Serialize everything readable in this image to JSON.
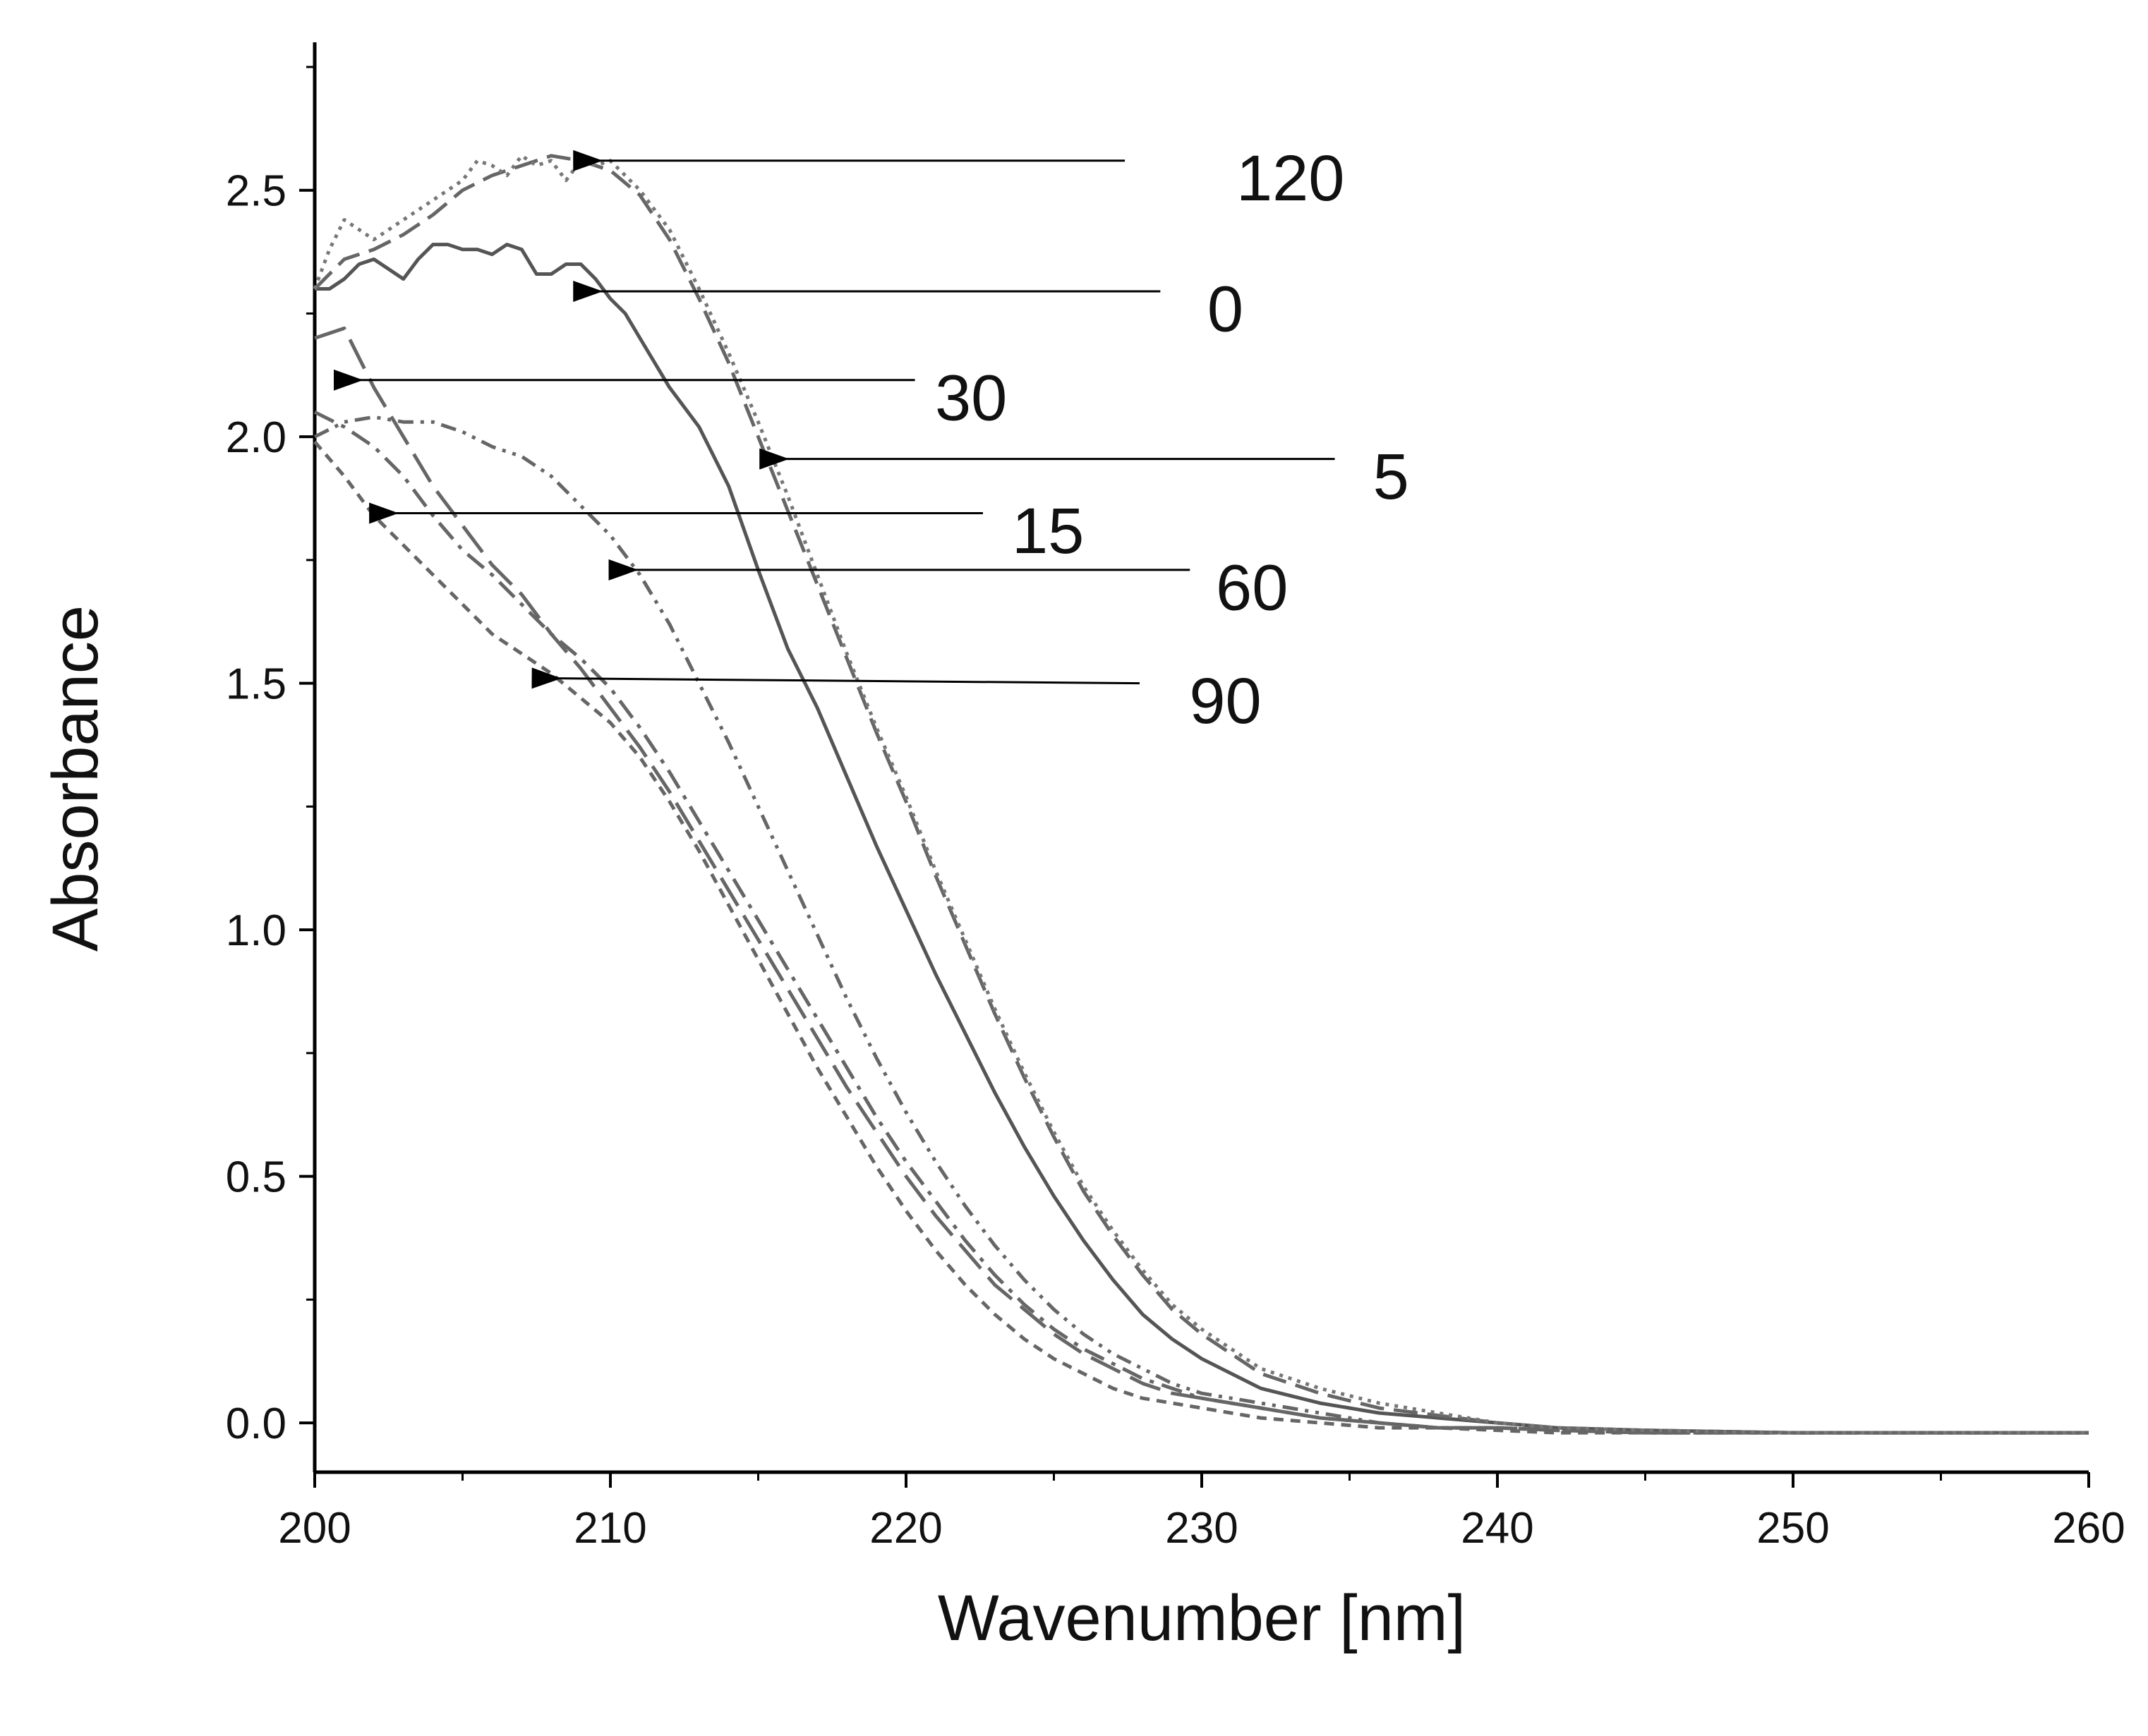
{
  "chart_data": {
    "type": "line",
    "title": "",
    "xlabel": "Wavenumber [nm]",
    "ylabel": "Absorbance",
    "xlim": [
      200,
      260
    ],
    "ylim": [
      -0.1,
      2.8
    ],
    "xticks": [
      200,
      210,
      220,
      230,
      240,
      250,
      260
    ],
    "xtick_labels": [
      "200",
      "210",
      "220",
      "230",
      "240",
      "250",
      "260"
    ],
    "yticks": [
      0.0,
      0.5,
      1.0,
      1.5,
      2.0,
      2.5
    ],
    "ytick_labels": [
      "0.0",
      "0.5",
      "1.0",
      "1.5",
      "2.0",
      "2.5"
    ],
    "grid": false,
    "series": [
      {
        "name": "0",
        "style": "solid",
        "color": "#555555",
        "x": [
          200,
          200.5,
          201,
          201.5,
          202,
          202.5,
          203,
          203.5,
          204,
          204.5,
          205,
          205.5,
          206,
          206.5,
          207,
          207.5,
          208,
          208.5,
          209,
          209.5,
          210,
          210.5,
          211,
          212,
          213,
          214,
          215,
          216,
          217,
          218,
          219,
          220,
          221,
          222,
          223,
          224,
          225,
          226,
          227,
          228,
          229,
          230,
          232,
          234,
          236,
          238,
          240,
          242,
          245,
          250,
          255,
          260
        ],
        "y": [
          2.3,
          2.3,
          2.32,
          2.35,
          2.36,
          2.34,
          2.32,
          2.36,
          2.39,
          2.39,
          2.38,
          2.38,
          2.37,
          2.39,
          2.38,
          2.33,
          2.33,
          2.35,
          2.35,
          2.32,
          2.28,
          2.25,
          2.2,
          2.1,
          2.02,
          1.9,
          1.73,
          1.57,
          1.45,
          1.31,
          1.17,
          1.04,
          0.91,
          0.79,
          0.67,
          0.56,
          0.46,
          0.37,
          0.29,
          0.22,
          0.17,
          0.13,
          0.07,
          0.04,
          0.02,
          0.01,
          0.0,
          -0.01,
          -0.015,
          -0.02,
          -0.02,
          -0.02
        ]
      },
      {
        "name": "5",
        "style": "dashdash",
        "color": "#666666",
        "x": [
          200,
          200.5,
          201,
          202,
          203,
          204,
          205,
          206,
          207,
          208,
          209,
          210,
          211,
          212,
          213,
          214,
          215,
          216,
          217,
          218,
          219,
          220,
          221,
          222,
          223,
          224,
          225,
          226,
          227,
          228,
          229,
          230,
          232,
          234,
          236,
          238,
          240,
          242,
          245,
          250,
          255,
          260
        ],
        "y": [
          2.3,
          2.33,
          2.36,
          2.38,
          2.41,
          2.45,
          2.5,
          2.53,
          2.55,
          2.57,
          2.56,
          2.54,
          2.49,
          2.4,
          2.28,
          2.15,
          2.0,
          1.85,
          1.7,
          1.55,
          1.4,
          1.26,
          1.11,
          0.97,
          0.83,
          0.7,
          0.58,
          0.47,
          0.38,
          0.3,
          0.23,
          0.18,
          0.1,
          0.06,
          0.03,
          0.015,
          0.0,
          -0.01,
          -0.015,
          -0.02,
          -0.02,
          -0.02
        ]
      },
      {
        "name": "15",
        "style": "dashdot",
        "color": "#666666",
        "x": [
          200,
          201,
          202,
          203,
          204,
          205,
          206,
          207,
          208,
          209,
          210,
          211,
          212,
          213,
          214,
          215,
          216,
          217,
          218,
          219,
          220,
          221,
          222,
          223,
          224,
          225,
          226,
          227,
          228,
          229,
          230,
          232,
          234,
          236,
          238,
          240,
          242,
          245,
          250,
          255,
          260
        ],
        "y": [
          2.05,
          2.02,
          1.98,
          1.92,
          1.84,
          1.77,
          1.72,
          1.66,
          1.6,
          1.55,
          1.49,
          1.41,
          1.32,
          1.22,
          1.12,
          1.02,
          0.92,
          0.82,
          0.72,
          0.62,
          0.53,
          0.45,
          0.37,
          0.3,
          0.24,
          0.19,
          0.15,
          0.12,
          0.09,
          0.07,
          0.05,
          0.03,
          0.01,
          0.0,
          -0.01,
          -0.01,
          -0.015,
          -0.02,
          -0.02,
          -0.02,
          -0.02
        ]
      },
      {
        "name": "30",
        "style": "longdash",
        "color": "#666666",
        "x": [
          200,
          201,
          202,
          203,
          204,
          205,
          206,
          207,
          208,
          209,
          210,
          211,
          212,
          213,
          214,
          215,
          216,
          217,
          218,
          219,
          220,
          221,
          222,
          223,
          224,
          225,
          226,
          227,
          228,
          229,
          230,
          232,
          234,
          236,
          238,
          240,
          242,
          245,
          250,
          255,
          260
        ],
        "y": [
          2.2,
          2.22,
          2.1,
          2.0,
          1.9,
          1.82,
          1.74,
          1.68,
          1.6,
          1.53,
          1.45,
          1.37,
          1.28,
          1.18,
          1.08,
          0.98,
          0.88,
          0.78,
          0.68,
          0.59,
          0.5,
          0.42,
          0.35,
          0.28,
          0.23,
          0.18,
          0.14,
          0.11,
          0.08,
          0.06,
          0.05,
          0.03,
          0.01,
          0.0,
          -0.01,
          -0.01,
          -0.015,
          -0.02,
          -0.02,
          -0.02,
          -0.02
        ]
      },
      {
        "name": "60",
        "style": "dashdotdot",
        "color": "#666666",
        "x": [
          200,
          201,
          202,
          203,
          204,
          205,
          206,
          207,
          208,
          209,
          210,
          211,
          212,
          213,
          214,
          215,
          216,
          217,
          218,
          219,
          220,
          221,
          222,
          223,
          224,
          225,
          226,
          227,
          228,
          229,
          230,
          232,
          234,
          236,
          238,
          240,
          242,
          245,
          250,
          255,
          260
        ],
        "y": [
          2.0,
          2.03,
          2.04,
          2.03,
          2.03,
          2.01,
          1.98,
          1.96,
          1.92,
          1.86,
          1.8,
          1.72,
          1.62,
          1.5,
          1.38,
          1.25,
          1.12,
          0.99,
          0.86,
          0.74,
          0.63,
          0.53,
          0.44,
          0.36,
          0.29,
          0.23,
          0.18,
          0.14,
          0.11,
          0.08,
          0.06,
          0.04,
          0.02,
          0.0,
          -0.01,
          -0.01,
          -0.015,
          -0.02,
          -0.02,
          -0.02,
          -0.02
        ]
      },
      {
        "name": "90",
        "style": "shortdash",
        "color": "#666666",
        "x": [
          200,
          201,
          202,
          203,
          204,
          205,
          206,
          207,
          208,
          209,
          210,
          211,
          212,
          213,
          214,
          215,
          216,
          217,
          218,
          219,
          220,
          221,
          222,
          223,
          224,
          225,
          226,
          227,
          228,
          229,
          230,
          232,
          234,
          236,
          238,
          240,
          242,
          245,
          250,
          255,
          260
        ],
        "y": [
          1.99,
          1.92,
          1.84,
          1.78,
          1.72,
          1.66,
          1.6,
          1.56,
          1.52,
          1.47,
          1.42,
          1.35,
          1.26,
          1.16,
          1.05,
          0.94,
          0.83,
          0.72,
          0.62,
          0.52,
          0.43,
          0.35,
          0.28,
          0.22,
          0.17,
          0.13,
          0.1,
          0.07,
          0.05,
          0.04,
          0.03,
          0.01,
          0.0,
          -0.01,
          -0.01,
          -0.015,
          -0.02,
          -0.02,
          -0.02,
          -0.02,
          -0.02
        ]
      },
      {
        "name": "120",
        "style": "dotted",
        "color": "#777777",
        "x": [
          200,
          200.5,
          201,
          201.5,
          202,
          203,
          204,
          205,
          205.5,
          206,
          206.5,
          207,
          207.5,
          208,
          208.5,
          209,
          209.5,
          210,
          211,
          212,
          213,
          214,
          215,
          216,
          217,
          218,
          219,
          220,
          221,
          222,
          223,
          224,
          225,
          226,
          227,
          228,
          229,
          230,
          232,
          234,
          236,
          238,
          240,
          242,
          245,
          250,
          255,
          260
        ],
        "y": [
          2.3,
          2.38,
          2.44,
          2.42,
          2.4,
          2.44,
          2.48,
          2.52,
          2.56,
          2.55,
          2.53,
          2.57,
          2.55,
          2.56,
          2.52,
          2.56,
          2.55,
          2.56,
          2.5,
          2.42,
          2.3,
          2.17,
          2.03,
          1.88,
          1.72,
          1.56,
          1.41,
          1.27,
          1.12,
          0.98,
          0.84,
          0.71,
          0.59,
          0.48,
          0.39,
          0.31,
          0.24,
          0.19,
          0.11,
          0.07,
          0.04,
          0.02,
          0.0,
          -0.01,
          -0.015,
          -0.02,
          -0.02,
          -0.02
        ]
      }
    ],
    "annotations": [
      {
        "label": "120",
        "tip_x": 209.6,
        "tip_y": 2.56,
        "tail_x": 227.4,
        "tail_y": 2.56,
        "text_x": 233.0,
        "text_y": 2.525,
        "anchor": "middle"
      },
      {
        "label": "0",
        "tip_x": 209.6,
        "tip_y": 2.295,
        "tail_x": 228.6,
        "tail_y": 2.295,
        "text_x": 230.8,
        "text_y": 2.26,
        "anchor": "middle"
      },
      {
        "label": "30",
        "tip_x": 201.5,
        "tip_y": 2.115,
        "tail_x": 220.3,
        "tail_y": 2.115,
        "text_x": 222.2,
        "text_y": 2.08,
        "anchor": "middle"
      },
      {
        "label": "5",
        "tip_x": 215.9,
        "tip_y": 1.955,
        "tail_x": 234.5,
        "tail_y": 1.955,
        "text_x": 236.4,
        "text_y": 1.92,
        "anchor": "middle"
      },
      {
        "label": "15",
        "tip_x": 202.7,
        "tip_y": 1.845,
        "tail_x": 222.6,
        "tail_y": 1.845,
        "text_x": 224.8,
        "text_y": 1.81,
        "anchor": "middle"
      },
      {
        "label": "60",
        "tip_x": 210.8,
        "tip_y": 1.73,
        "tail_x": 229.6,
        "tail_y": 1.73,
        "text_x": 231.7,
        "text_y": 1.695,
        "anchor": "middle"
      },
      {
        "label": "90",
        "tip_x": 208.2,
        "tip_y": 1.51,
        "tail_x": 227.9,
        "tail_y": 1.5,
        "text_x": 230.8,
        "text_y": 1.465,
        "anchor": "middle"
      }
    ]
  }
}
